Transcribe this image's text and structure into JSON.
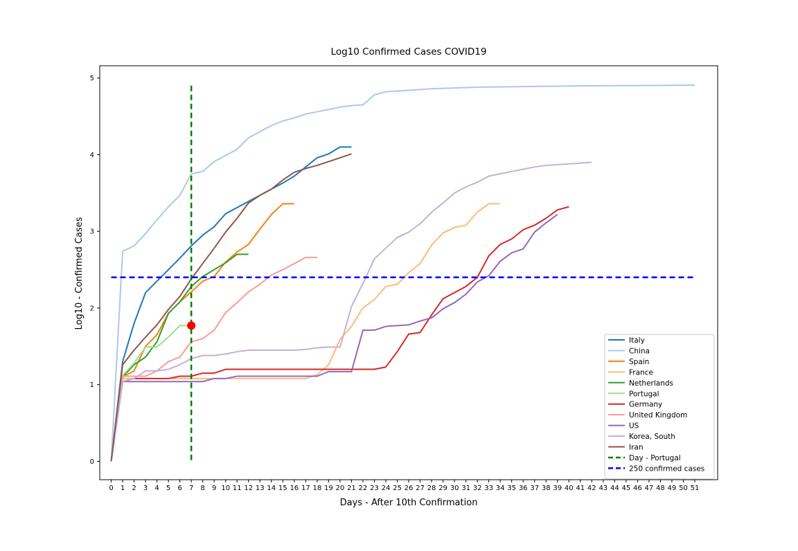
{
  "chart_data": {
    "type": "line",
    "title": "Log10 Confirmed Cases COVID19",
    "xlabel": "Days - After 10th Confirmation",
    "ylabel": "Log10 - Confirmed Cases",
    "xlim": [
      -1,
      53
    ],
    "ylim": [
      -0.24,
      5.16
    ],
    "xticks": [
      0,
      1,
      2,
      3,
      4,
      5,
      6,
      7,
      8,
      9,
      10,
      11,
      12,
      13,
      14,
      15,
      16,
      17,
      18,
      19,
      20,
      21,
      22,
      23,
      24,
      25,
      26,
      27,
      28,
      29,
      30,
      31,
      32,
      33,
      34,
      35,
      36,
      37,
      38,
      39,
      40,
      41,
      42,
      43,
      44,
      45,
      46,
      47,
      48,
      49,
      50,
      51
    ],
    "yticks": [
      0,
      1,
      2,
      3,
      4,
      5
    ],
    "grid": false,
    "legend_position": "lower right",
    "series": [
      {
        "name": "Italy",
        "color": "#1f77b4",
        "values": [
          0,
          1.3,
          1.8,
          2.2,
          2.35,
          2.5,
          2.65,
          2.81,
          2.95,
          3.06,
          3.23,
          3.31,
          3.39,
          3.47,
          3.55,
          3.63,
          3.72,
          3.84,
          3.96,
          4.01,
          4.1,
          4.1
        ]
      },
      {
        "name": "China",
        "color": "#aec7e8",
        "values": [
          0,
          2.74,
          2.81,
          2.97,
          3.15,
          3.32,
          3.47,
          3.75,
          3.78,
          3.91,
          3.99,
          4.07,
          4.22,
          4.3,
          4.38,
          4.44,
          4.48,
          4.53,
          4.56,
          4.59,
          4.62,
          4.64,
          4.65,
          4.78,
          4.82,
          4.83,
          4.84,
          4.85,
          4.86,
          4.865,
          4.87,
          4.875,
          4.88,
          4.882,
          4.884,
          4.886,
          4.888,
          4.89,
          4.892,
          4.894,
          4.896,
          4.897,
          4.898,
          4.899,
          4.9,
          4.901,
          4.902,
          4.903,
          4.904,
          4.905,
          4.906,
          4.907
        ]
      },
      {
        "name": "Spain",
        "color": "#ff7f0e",
        "values": [
          0,
          1.1,
          1.18,
          1.5,
          1.65,
          1.93,
          2.08,
          2.21,
          2.35,
          2.41,
          2.6,
          2.73,
          2.83,
          3.03,
          3.22,
          3.36,
          3.36
        ]
      },
      {
        "name": "France",
        "color": "#ffbb78",
        "values": [
          0,
          1.08,
          1.08,
          1.08,
          1.08,
          1.08,
          1.08,
          1.08,
          1.08,
          1.08,
          1.08,
          1.08,
          1.08,
          1.08,
          1.08,
          1.08,
          1.08,
          1.08,
          1.13,
          1.26,
          1.59,
          1.76,
          2.0,
          2.11,
          2.28,
          2.31,
          2.46,
          2.58,
          2.82,
          2.98,
          3.05,
          3.08,
          3.25,
          3.36,
          3.36
        ]
      },
      {
        "name": "Netherlands",
        "color": "#2ca02c",
        "values": [
          0,
          1.1,
          1.26,
          1.36,
          1.56,
          1.93,
          2.08,
          2.28,
          2.41,
          2.5,
          2.59,
          2.7,
          2.7
        ]
      },
      {
        "name": "Portugal",
        "color": "#98df8a",
        "values": [
          0,
          1.12,
          1.28,
          1.49,
          1.49,
          1.62,
          1.77,
          1.77
        ]
      },
      {
        "name": "Germany",
        "color": "#d62728",
        "values": [
          0,
          1.04,
          1.08,
          1.08,
          1.08,
          1.08,
          1.11,
          1.11,
          1.15,
          1.15,
          1.2,
          1.2,
          1.2,
          1.2,
          1.2,
          1.2,
          1.2,
          1.2,
          1.2,
          1.2,
          1.2,
          1.2,
          1.2,
          1.2,
          1.23,
          1.43,
          1.66,
          1.68,
          1.91,
          2.12,
          2.2,
          2.28,
          2.4,
          2.68,
          2.83,
          2.9,
          3.02,
          3.08,
          3.17,
          3.28,
          3.32
        ]
      },
      {
        "name": "United Kingdom",
        "color": "#ff9896",
        "values": [
          0,
          1.11,
          1.11,
          1.11,
          1.18,
          1.3,
          1.36,
          1.56,
          1.6,
          1.71,
          1.94,
          2.07,
          2.21,
          2.31,
          2.43,
          2.5,
          2.58,
          2.66,
          2.66
        ]
      },
      {
        "name": "US",
        "color": "#9467bd",
        "values": [
          0,
          1.04,
          1.04,
          1.04,
          1.04,
          1.04,
          1.04,
          1.04,
          1.04,
          1.08,
          1.08,
          1.11,
          1.11,
          1.11,
          1.11,
          1.11,
          1.11,
          1.11,
          1.11,
          1.17,
          1.17,
          1.17,
          1.71,
          1.71,
          1.76,
          1.77,
          1.78,
          1.83,
          1.87,
          1.99,
          2.07,
          2.18,
          2.34,
          2.42,
          2.61,
          2.72,
          2.77,
          2.99,
          3.11,
          3.22
        ]
      },
      {
        "name": "Korea, South",
        "color": "#c5b0d5",
        "values": [
          0,
          1.04,
          1.08,
          1.18,
          1.18,
          1.2,
          1.26,
          1.34,
          1.38,
          1.38,
          1.4,
          1.43,
          1.45,
          1.45,
          1.45,
          1.45,
          1.45,
          1.46,
          1.48,
          1.49,
          1.49,
          2.02,
          2.32,
          2.64,
          2.78,
          2.92,
          2.99,
          3.1,
          3.25,
          3.37,
          3.5,
          3.58,
          3.64,
          3.72,
          3.75,
          3.78,
          3.81,
          3.84,
          3.86,
          3.87,
          3.88,
          3.89,
          3.9
        ]
      },
      {
        "name": "Iran",
        "color": "#8c564b",
        "values": [
          0,
          1.26,
          1.45,
          1.62,
          1.78,
          1.98,
          2.15,
          2.38,
          2.58,
          2.78,
          2.99,
          3.17,
          3.37,
          3.47,
          3.55,
          3.67,
          3.77,
          3.82,
          3.86,
          3.91,
          3.96,
          4.01
        ]
      }
    ],
    "reference_lines": [
      {
        "name": "Day - Portugal",
        "color": "#008000",
        "orientation": "vertical",
        "x": 7,
        "y_range": [
          0,
          4.9
        ]
      },
      {
        "name": "250  confirmed cases",
        "color": "#0000ff",
        "orientation": "horizontal",
        "y": 2.4,
        "x_range": [
          0,
          51
        ]
      }
    ],
    "marker": {
      "x": 7,
      "y": 1.77,
      "color": "#ff0000"
    }
  }
}
